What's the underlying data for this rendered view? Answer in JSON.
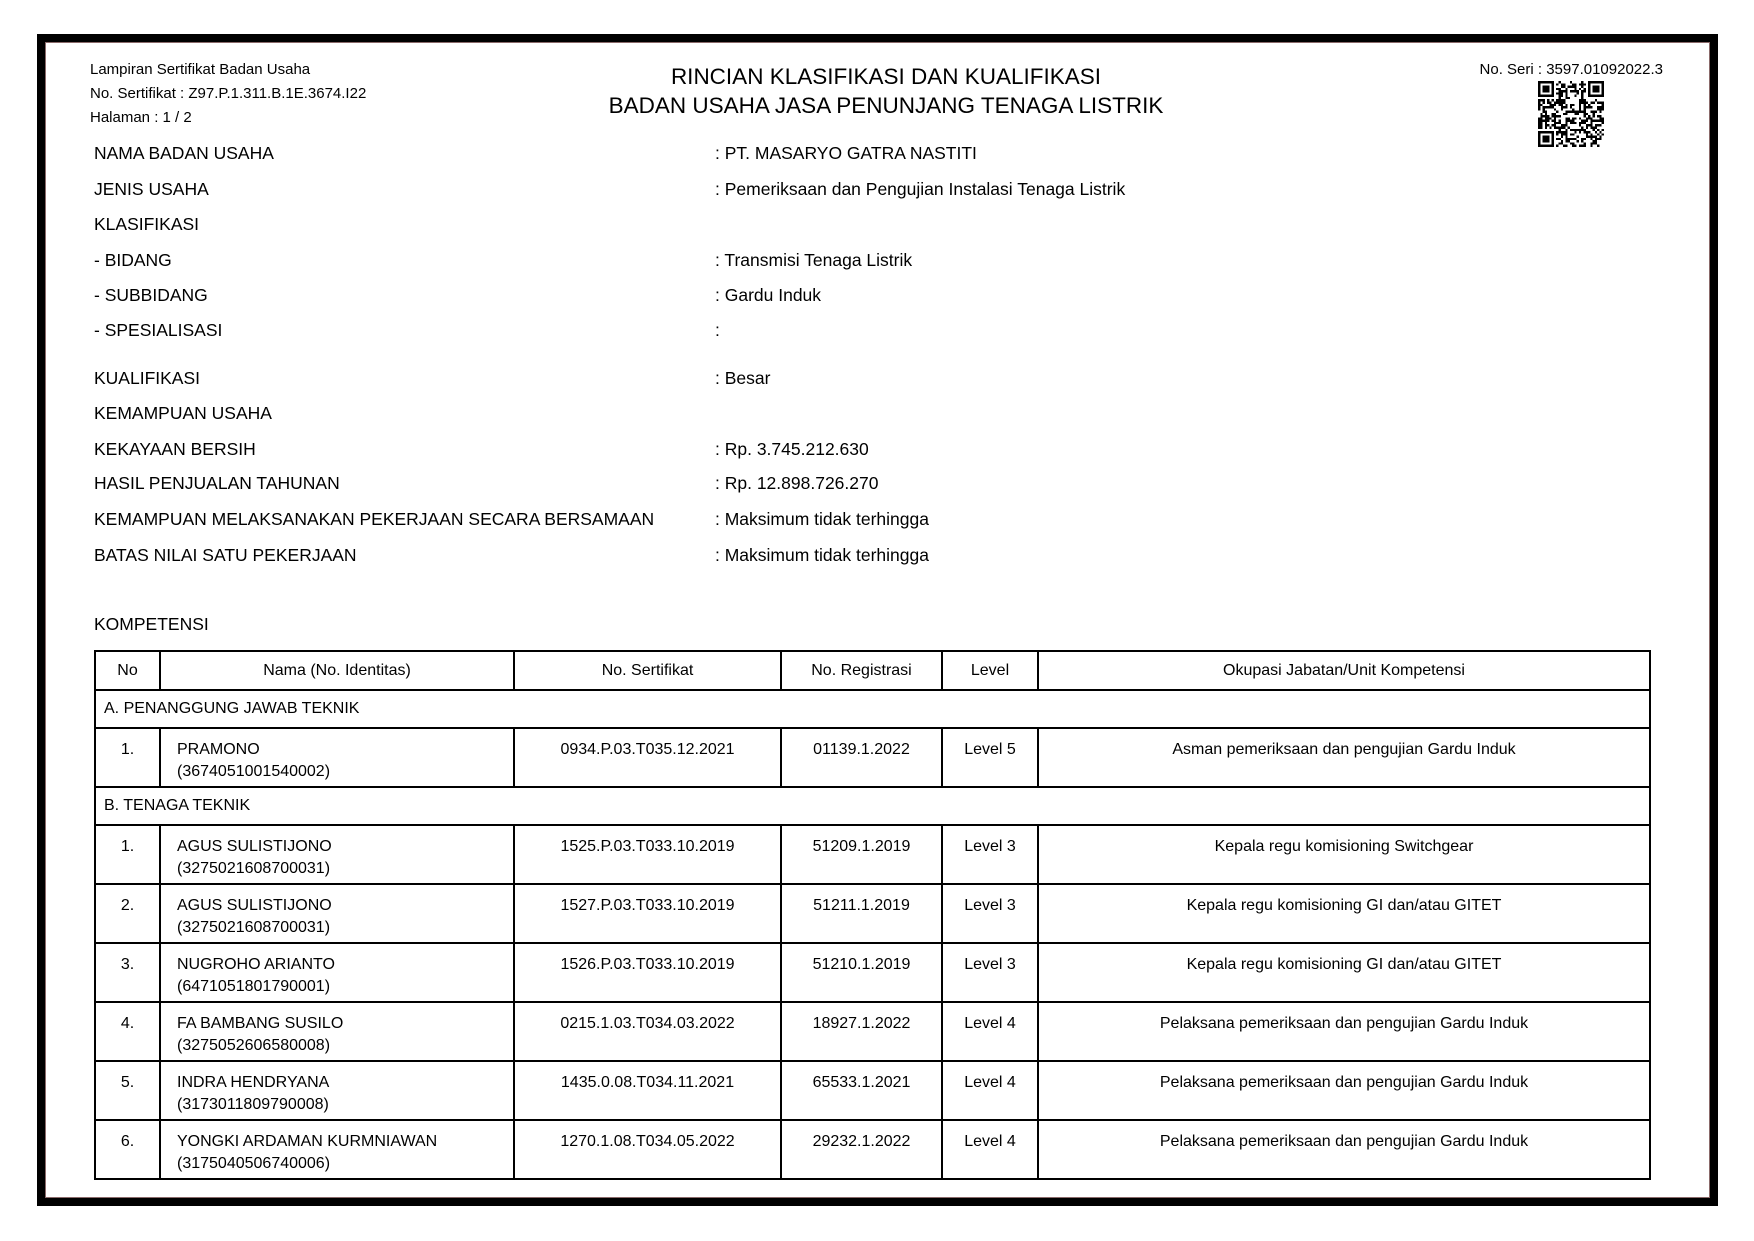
{
  "header": {
    "lines": [
      "Lampiran Sertifikat Badan Usaha",
      "No. Sertifikat : Z97.P.1.311.B.1E.3674.I22",
      "Halaman : 1 / 2"
    ],
    "title": [
      "RINCIAN KLASIFIKASI DAN KUALIFIKASI",
      "BADAN USAHA JASA PENUNJANG TENAGA LISTRIK"
    ],
    "serial": "No. Seri : 3597.01092022.3",
    "qr_icon": "qr-code"
  },
  "info": [
    {
      "label": "NAMA BADAN USAHA",
      "value": ": PT. MASARYO GATRA NASTITI"
    },
    {
      "label": "JENIS USAHA",
      "value": ": Pemeriksaan dan Pengujian Instalasi Tenaga Listrik"
    },
    {
      "label": "KLASIFIKASI",
      "value": ""
    },
    {
      "label": "- BIDANG",
      "value": ": Transmisi Tenaga Listrik"
    },
    {
      "label": "- SUBBIDANG",
      "value": ": Gardu Induk"
    },
    {
      "label": "- SPESIALISASI",
      "value": ":"
    },
    {
      "label": "KUALIFIKASI",
      "value": ": Besar"
    },
    {
      "label": "KEMAMPUAN USAHA",
      "value": ""
    },
    {
      "label": "KEKAYAAN BERSIH",
      "value": ": Rp. 3.745.212.630"
    },
    {
      "label": "HASIL PENJUALAN TAHUNAN",
      "value": ": Rp. 12.898.726.270"
    },
    {
      "label": "KEMAMPUAN MELAKSANAKAN PEKERJAAN SECARA BERSAMAAN",
      "value": ": Maksimum tidak terhingga"
    },
    {
      "label": "BATAS NILAI SATU PEKERJAAN",
      "value": ": Maksimum tidak terhingga"
    }
  ],
  "kompetensi": {
    "title": "KOMPETENSI",
    "columns": [
      "No",
      "Nama (No. Identitas)",
      "No. Sertifikat",
      "No. Registrasi",
      "Level",
      "Okupasi Jabatan/Unit Kompetensi"
    ],
    "sections": [
      {
        "title": "A. PENANGGUNG JAWAB TEKNIK",
        "rows": [
          {
            "no": "1.",
            "name": "PRAMONO",
            "id": "(3674051001540002)",
            "cert": "0934.P.03.T035.12.2021",
            "reg": "01139.1.2022",
            "level": "Level 5",
            "okupasi": "Asman pemeriksaan dan pengujian Gardu Induk"
          }
        ]
      },
      {
        "title": "B. TENAGA TEKNIK",
        "rows": [
          {
            "no": "1.",
            "name": "AGUS SULISTIJONO",
            "id": "(3275021608700031)",
            "cert": "1525.P.03.T033.10.2019",
            "reg": "51209.1.2019",
            "level": "Level 3",
            "okupasi": "Kepala regu komisioning Switchgear"
          },
          {
            "no": "2.",
            "name": "AGUS SULISTIJONO",
            "id": "(3275021608700031)",
            "cert": "1527.P.03.T033.10.2019",
            "reg": "51211.1.2019",
            "level": "Level 3",
            "okupasi": "Kepala regu komisioning GI dan/atau GITET"
          },
          {
            "no": "3.",
            "name": "NUGROHO ARIANTO",
            "id": "(6471051801790001)",
            "cert": "1526.P.03.T033.10.2019",
            "reg": "51210.1.2019",
            "level": "Level 3",
            "okupasi": "Kepala regu komisioning GI dan/atau GITET"
          },
          {
            "no": "4.",
            "name": "FA BAMBANG SUSILO",
            "id": "(3275052606580008)",
            "cert": "0215.1.03.T034.03.2022",
            "reg": "18927.1.2022",
            "level": "Level 4",
            "okupasi": "Pelaksana pemeriksaan dan pengujian Gardu Induk"
          },
          {
            "no": "5.",
            "name": "INDRA HENDRYANA",
            "id": "(3173011809790008)",
            "cert": "1435.0.08.T034.11.2021",
            "reg": "65533.1.2021",
            "level": "Level 4",
            "okupasi": "Pelaksana pemeriksaan dan pengujian Gardu Induk"
          },
          {
            "no": "6.",
            "name": "YONGKI ARDAMAN KURMNIAWAN",
            "id": "(3175040506740006)",
            "cert": "1270.1.08.T034.05.2022",
            "reg": "29232.1.2022",
            "level": "Level 4",
            "okupasi": "Pelaksana pemeriksaan dan pengujian Gardu Induk"
          }
        ]
      }
    ]
  }
}
